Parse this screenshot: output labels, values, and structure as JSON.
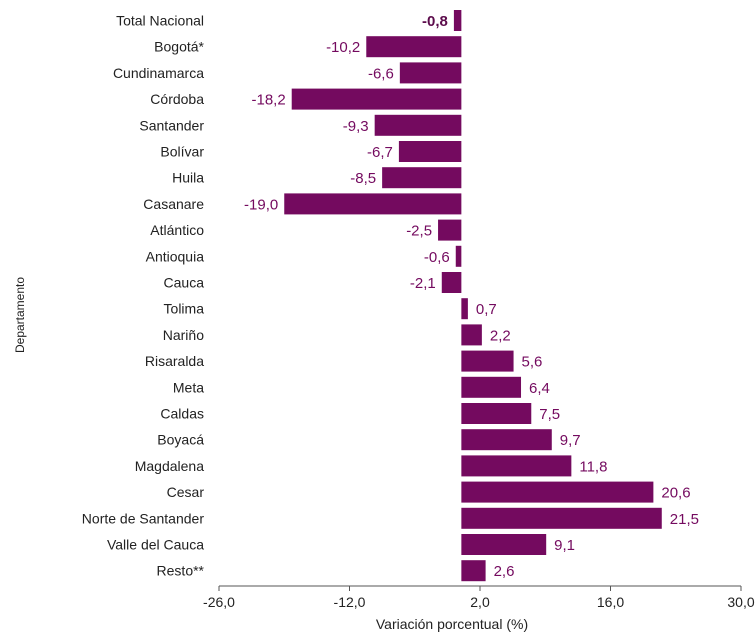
{
  "colors": {
    "bar": "#740a5f",
    "value_label": "#740a5f",
    "value_label_total": "#5c0c4c",
    "text": "#222222",
    "axis": "#555555"
  },
  "chart_data": {
    "type": "bar",
    "orientation": "horizontal",
    "categories": [
      "Total Nacional",
      "Bogotá*",
      "Cundinamarca",
      "Córdoba",
      "Santander",
      "Bolívar",
      "Huila",
      "Casanare",
      "Atlántico",
      "Antioquia",
      "Cauca",
      "Tolima",
      "Nariño",
      "Risaralda",
      "Meta",
      "Caldas",
      "Boyacá",
      "Magdalena",
      "Cesar",
      "Norte de Santander",
      "Valle del Cauca",
      "Resto**"
    ],
    "values": [
      -0.8,
      -10.2,
      -6.6,
      -18.2,
      -9.3,
      -6.7,
      -8.5,
      -19.0,
      -2.5,
      -0.6,
      -2.1,
      0.7,
      2.2,
      5.6,
      6.4,
      7.5,
      9.7,
      11.8,
      20.6,
      21.5,
      9.1,
      2.6
    ],
    "value_labels": [
      "-0,8",
      "-10,2",
      "-6,6",
      "-18,2",
      "-9,3",
      "-6,7",
      "-8,5",
      "-19,0",
      "-2,5",
      "-0,6",
      "-2,1",
      "0,7",
      "2,2",
      "5,6",
      "6,4",
      "7,5",
      "9,7",
      "11,8",
      "20,6",
      "21,5",
      "9,1",
      "2,6"
    ],
    "xlim": [
      -26,
      30
    ],
    "xticks": [
      -26,
      -12,
      2,
      16,
      30
    ],
    "xtick_labels": [
      "-26,0",
      "-12,0",
      "2,0",
      "16,0",
      "30,0"
    ],
    "xlabel": "Variación porcentual  (%)",
    "ylabel": "Departamento",
    "title": "",
    "grid": false,
    "legend": "none"
  }
}
